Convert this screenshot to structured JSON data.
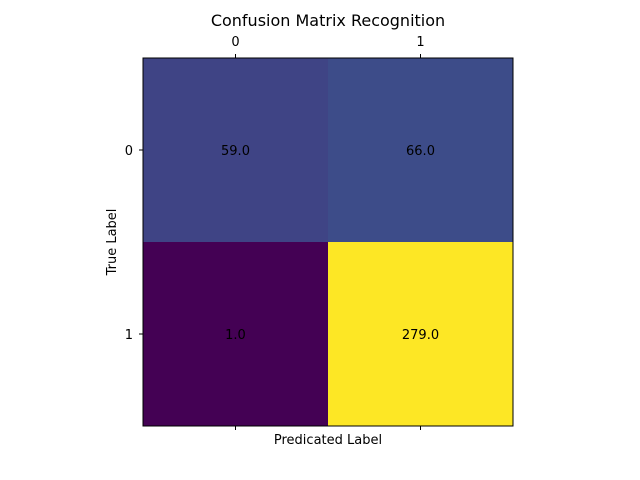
{
  "chart_data": {
    "type": "heatmap",
    "title": "Confusion Matrix Recognition",
    "xlabel": "Predicated Label",
    "ylabel": "True Label",
    "x_categories": [
      "0",
      "1"
    ],
    "y_categories": [
      "0",
      "1"
    ],
    "values": [
      [
        59.0,
        66.0
      ],
      [
        1.0,
        279.0
      ]
    ],
    "cell_labels": [
      [
        "59.0",
        "66.0"
      ],
      [
        "1.0",
        "279.0"
      ]
    ],
    "colormap": "viridis",
    "x_tick_position": "top",
    "grid": false
  }
}
